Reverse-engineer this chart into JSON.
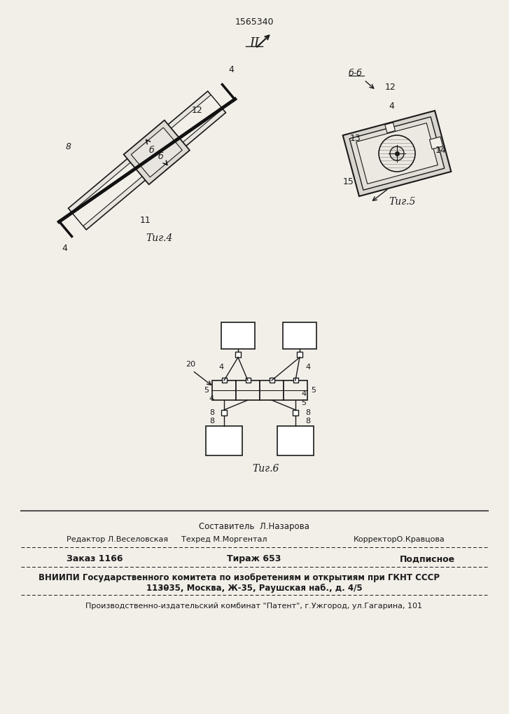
{
  "patent_number": "1565340",
  "fig4_label": "Τиг.4",
  "fig5_label": "Τиг.5",
  "fig6_label": "Τиг.6",
  "section_II": "II",
  "bg_color": "#f2efe9",
  "line_color": "#1a1a1a",
  "text_color": "#1a1a1a",
  "footer": {
    "composer": "Составитель  Л.Назарова",
    "editor": "Редактор Л.Веселовская",
    "techred": "Техред М.Моргентал",
    "corrector": "КорректорО.Кравцова",
    "order": "Заказ 1166",
    "circulation": "Тираж 653",
    "subscription": "Подписное",
    "vniip1": "ВНИИПИ Государственного комитета по изобретениям и открытиям при ГКНТ СССР",
    "vniip2": "113ББ035, Москва, Ж-35, Раушская наб., д. 4/5",
    "producer": "Производственно-издательский комбинат \"Патент\", г.Ужгород, ул.Гагарина, 101"
  }
}
